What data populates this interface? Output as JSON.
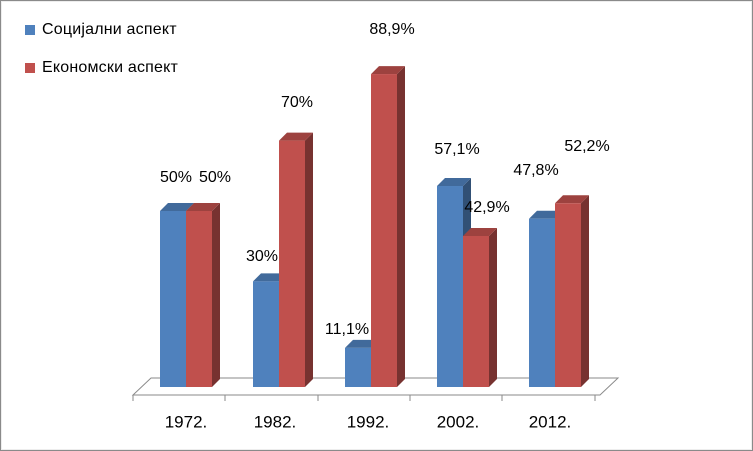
{
  "chart_data": {
    "type": "bar",
    "style": "3d-clustered",
    "categories": [
      "1972.",
      "1982.",
      "1992.",
      "2002.",
      "2012."
    ],
    "series": [
      {
        "name": "Социјални аспект",
        "color": "#4F81BD",
        "values": [
          50,
          30,
          11.1,
          57.1,
          47.8
        ],
        "labels": [
          "50%",
          "30%",
          "11,1%",
          "57,1%",
          "47,8%"
        ]
      },
      {
        "name": "Економски аспект",
        "color": "#C0504D",
        "values": [
          50,
          70,
          88.9,
          42.9,
          52.2
        ],
        "labels": [
          "50%",
          "70%",
          "88,9%",
          "42,9%",
          "52,2%"
        ]
      }
    ],
    "ylim": [
      0,
      100
    ],
    "grid": false,
    "legend_position": "top-left"
  }
}
